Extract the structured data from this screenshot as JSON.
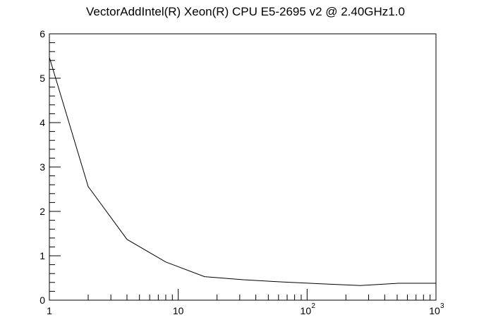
{
  "chart_data": {
    "type": "line",
    "title": "VectorAddIntel(R) Xeon(R) CPU E5-2695 v2 @ 2.40GHz1.0",
    "xlabel": "",
    "ylabel": "",
    "x_scale": "log",
    "xlim": [
      1,
      1000
    ],
    "ylim": [
      0,
      6
    ],
    "grid": false,
    "x_ticks": [
      {
        "value": 1,
        "base": "1",
        "exp": ""
      },
      {
        "value": 10,
        "base": "10",
        "exp": ""
      },
      {
        "value": 100,
        "base": "10",
        "exp": "2"
      },
      {
        "value": 1000,
        "base": "10",
        "exp": "3"
      }
    ],
    "y_ticks": [
      "0",
      "1",
      "2",
      "3",
      "4",
      "5",
      "6"
    ],
    "series": [
      {
        "x": [
          1,
          2,
          4,
          8,
          16,
          32,
          64,
          128,
          256,
          512,
          1000
        ],
        "values": [
          5.47,
          2.56,
          1.37,
          0.86,
          0.53,
          0.46,
          0.41,
          0.37,
          0.33,
          0.38,
          0.38
        ]
      }
    ],
    "colors": {
      "line": "#000000",
      "axis": "#000000",
      "background": "#ffffff"
    }
  }
}
